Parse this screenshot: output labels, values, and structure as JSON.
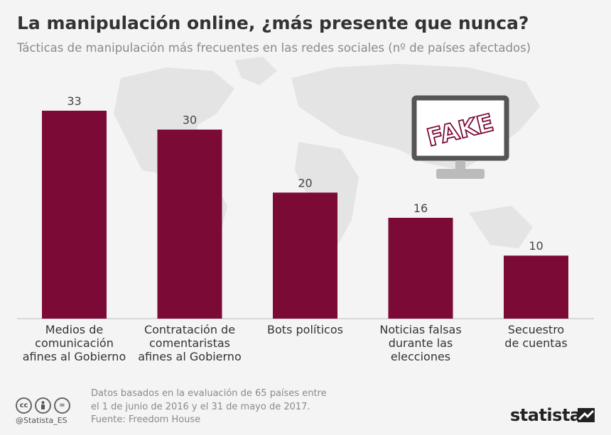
{
  "title": "La manipulación online, ¿más presente que nunca?",
  "subtitle": "Tácticas de manipulación más frecuentes en las redes sociales (nº de países afectados)",
  "chart_data": {
    "type": "bar",
    "title": "La manipulación online, ¿más presente que nunca?",
    "subtitle": "Tácticas de manipulación más frecuentes en las redes sociales (nº de países afectados)",
    "categories": [
      [
        "Medios de",
        "comunicación",
        "afines al Gobierno"
      ],
      [
        "Contratación de",
        "comentaristas",
        "afines al Gobierno"
      ],
      [
        "Bots políticos"
      ],
      [
        "Noticias falsas",
        "durante las",
        "elecciones"
      ],
      [
        "Secuestro",
        "de cuentas"
      ]
    ],
    "values": [
      33,
      30,
      20,
      16,
      10
    ],
    "ylim": [
      0,
      33
    ],
    "bar_color": "#7c0a37",
    "grid": false,
    "data_labels": true
  },
  "illustration": {
    "monitor_text": "FAKE",
    "stamp_color": "#7c0a37"
  },
  "footer": {
    "license_icons": [
      "cc",
      "by",
      "="
    ],
    "handle": "@Statista_ES",
    "note_line1": "Datos basados en la evaluación de 65 países entre",
    "note_line2": "el 1 de junio de 2016 y el 31 de mayo de 2017.",
    "source": "Fuente: Freedom House",
    "brand": "statista"
  }
}
